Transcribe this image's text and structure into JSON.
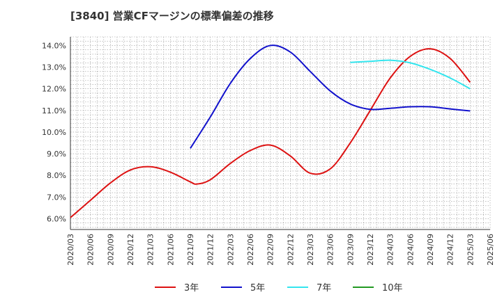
{
  "chart_data": {
    "type": "line",
    "title": "[3840]  営業CFマージンの標準偏差の推移",
    "xlabel": "",
    "ylabel": "",
    "ylim": [
      5.5,
      14.4
    ],
    "y_ticks": [
      "6.0%",
      "7.0%",
      "8.0%",
      "9.0%",
      "10.0%",
      "11.0%",
      "12.0%",
      "13.0%",
      "14.0%"
    ],
    "y_tick_values": [
      6,
      7,
      8,
      9,
      10,
      11,
      12,
      13,
      14
    ],
    "x_ticks": [
      "2020/03",
      "2020/06",
      "2020/09",
      "2020/12",
      "2021/03",
      "2021/06",
      "2021/09",
      "2021/12",
      "2022/03",
      "2022/06",
      "2022/09",
      "2022/12",
      "2023/03",
      "2023/06",
      "2023/09",
      "2023/12",
      "2024/03",
      "2024/06",
      "2024/09",
      "2024/12",
      "2025/03",
      "2025/06"
    ],
    "grid": true,
    "legend_position": "bottom",
    "series": [
      {
        "name": "3年",
        "color": "#dd1111",
        "points": [
          [
            "2020/03",
            6.05
          ],
          [
            "2020/06",
            6.85
          ],
          [
            "2020/09",
            7.65
          ],
          [
            "2020/12",
            8.25
          ],
          [
            "2021/03",
            8.4
          ],
          [
            "2021/06",
            8.15
          ],
          [
            "2021/09",
            7.7
          ],
          [
            "2021/10",
            7.6
          ],
          [
            "2021/12",
            7.8
          ],
          [
            "2022/03",
            8.55
          ],
          [
            "2022/06",
            9.15
          ],
          [
            "2022/09",
            9.4
          ],
          [
            "2022/12",
            8.9
          ],
          [
            "2023/03",
            8.1
          ],
          [
            "2023/06",
            8.3
          ],
          [
            "2023/09",
            9.5
          ],
          [
            "2023/12",
            11.0
          ],
          [
            "2024/03",
            12.5
          ],
          [
            "2024/06",
            13.5
          ],
          [
            "2024/09",
            13.85
          ],
          [
            "2024/12",
            13.4
          ],
          [
            "2025/03",
            12.3
          ]
        ]
      },
      {
        "name": "5年",
        "color": "#1111cc",
        "points": [
          [
            "2021/09",
            9.25
          ],
          [
            "2021/12",
            10.7
          ],
          [
            "2022/03",
            12.25
          ],
          [
            "2022/06",
            13.4
          ],
          [
            "2022/09",
            14.0
          ],
          [
            "2022/12",
            13.7
          ],
          [
            "2023/03",
            12.8
          ],
          [
            "2023/06",
            11.9
          ],
          [
            "2023/09",
            11.3
          ],
          [
            "2023/12",
            11.05
          ],
          [
            "2024/03",
            11.1
          ],
          [
            "2024/06",
            11.17
          ],
          [
            "2024/09",
            11.17
          ],
          [
            "2024/12",
            11.07
          ],
          [
            "2025/03",
            10.98
          ]
        ]
      },
      {
        "name": "7年",
        "color": "#33e5ee",
        "points": [
          [
            "2023/09",
            13.22
          ],
          [
            "2023/12",
            13.27
          ],
          [
            "2024/03",
            13.32
          ],
          [
            "2024/06",
            13.2
          ],
          [
            "2024/09",
            12.9
          ],
          [
            "2024/12",
            12.5
          ],
          [
            "2025/03",
            12.0
          ]
        ]
      },
      {
        "name": "10年",
        "color": "#229922",
        "points": []
      }
    ]
  }
}
